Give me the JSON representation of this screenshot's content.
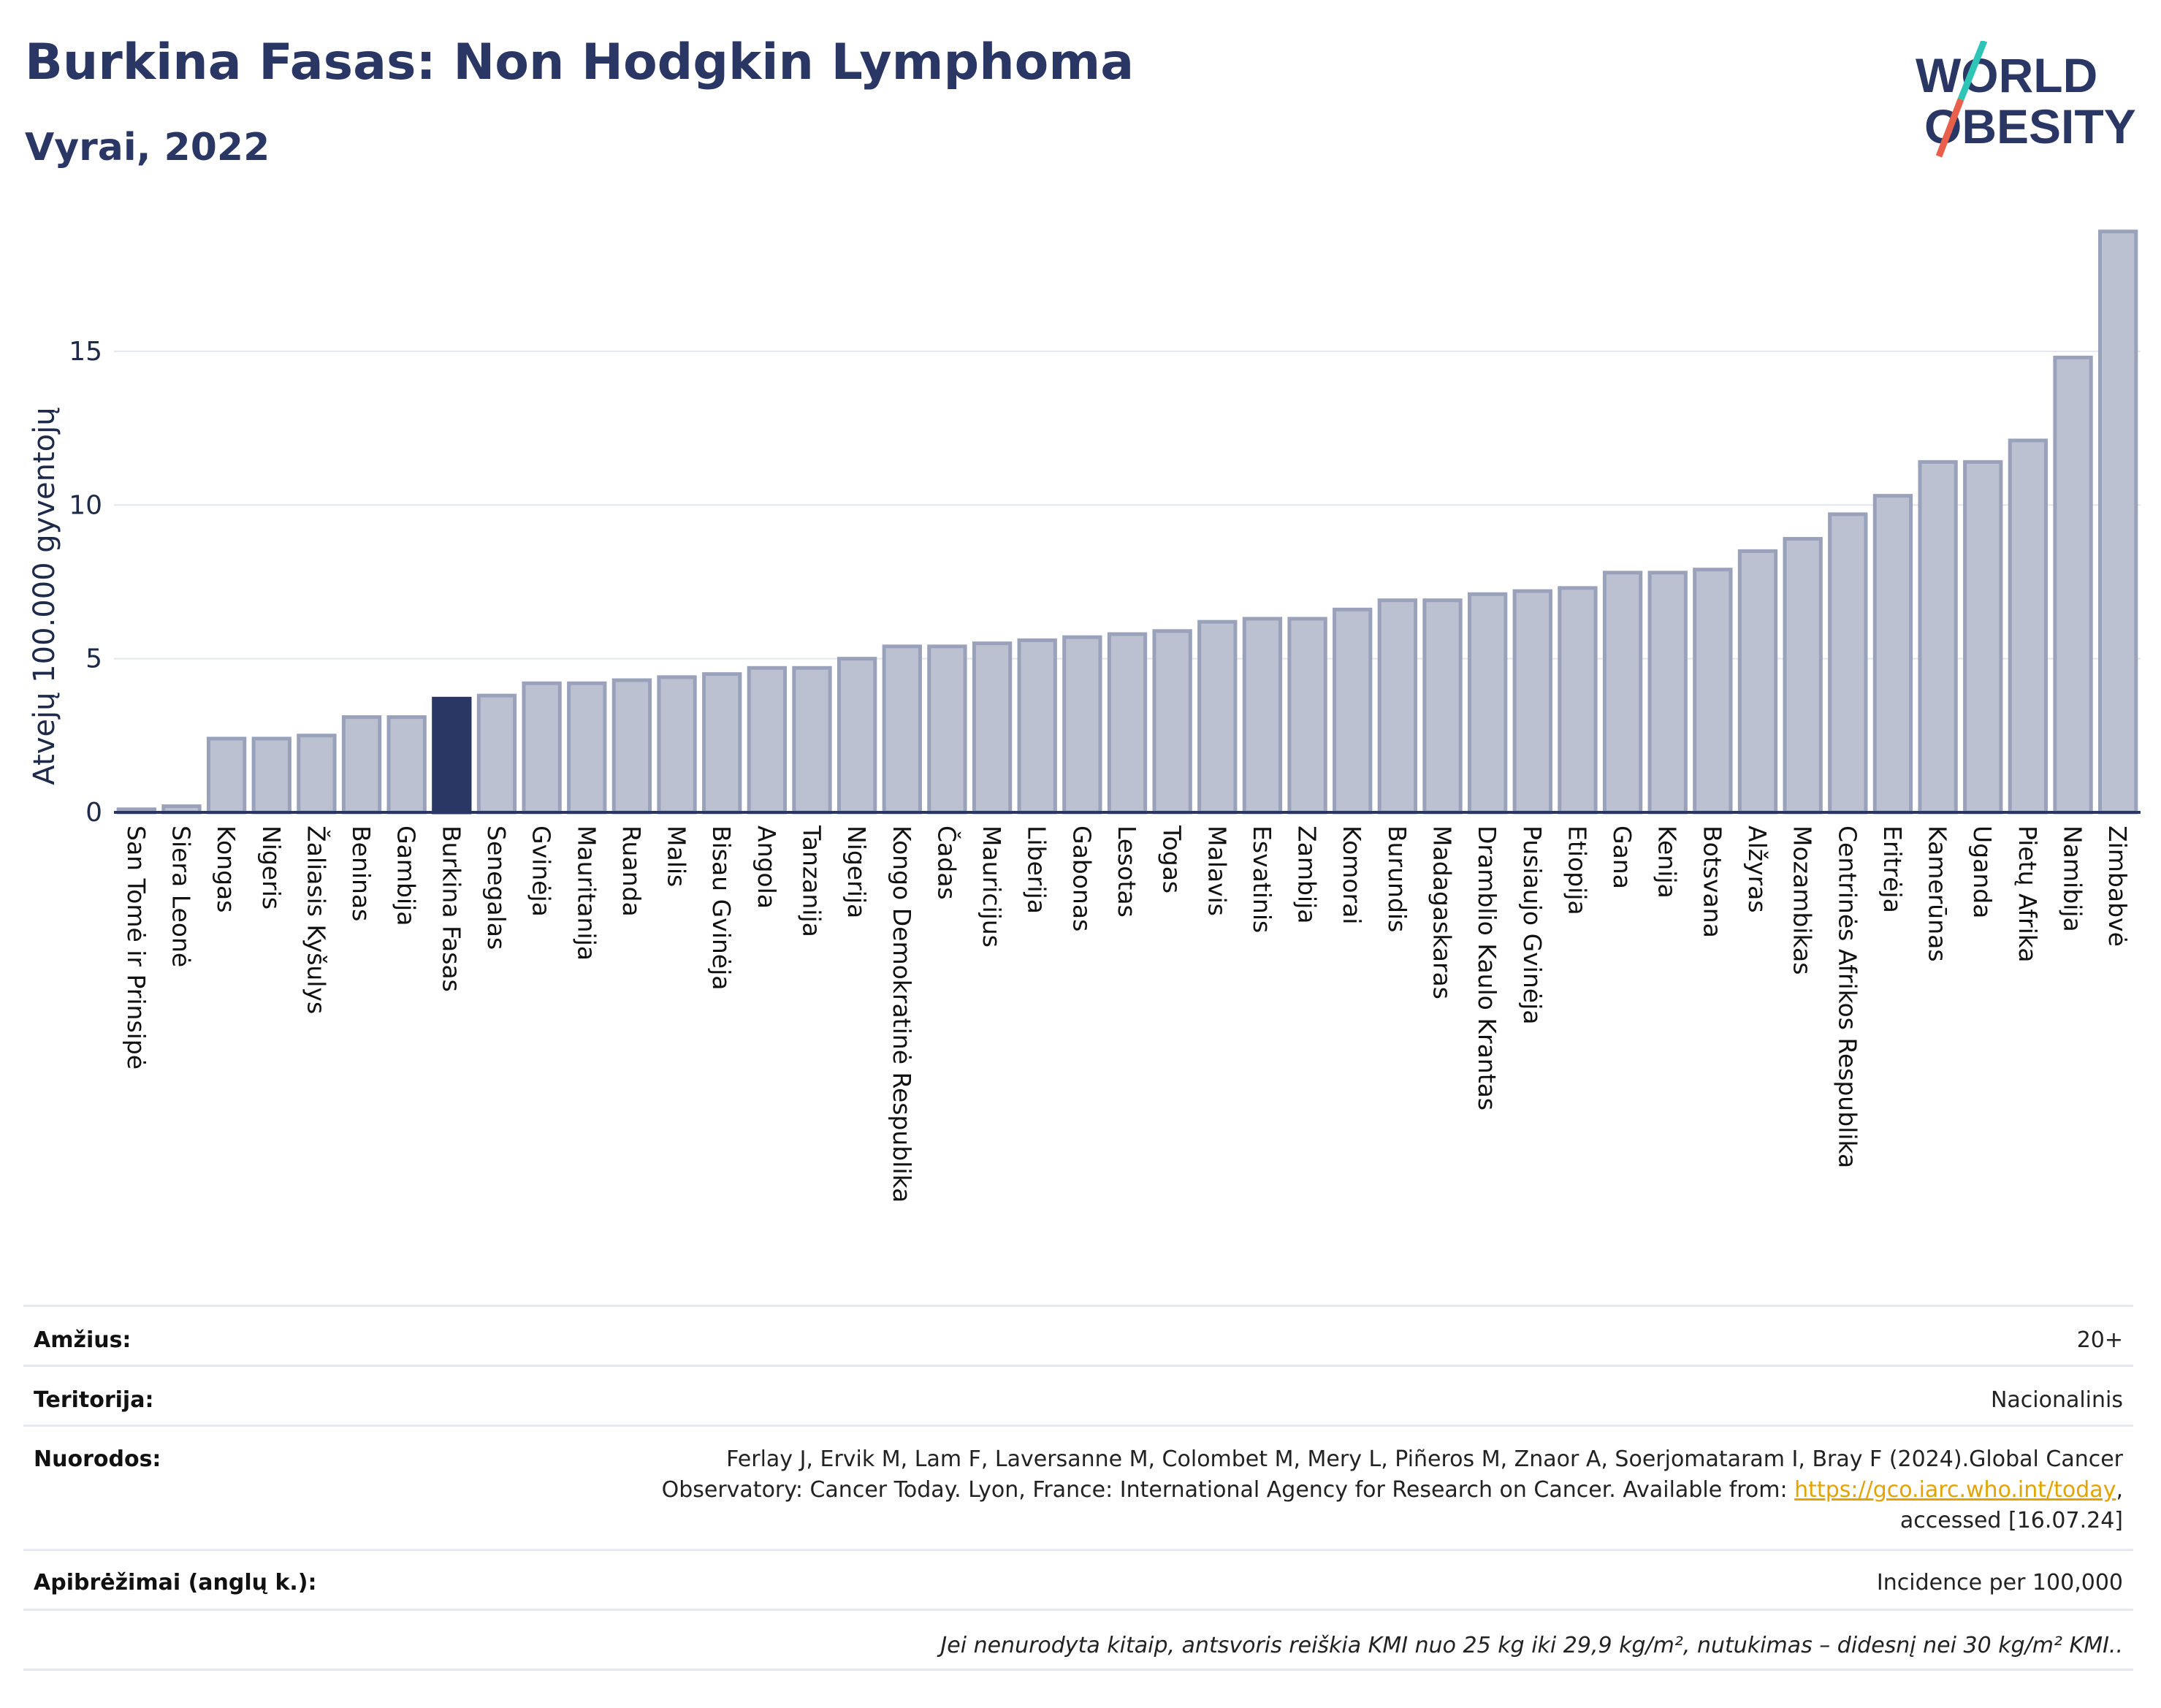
{
  "header": {
    "title": "Burkina Fasas: Non Hodgkin Lymphoma",
    "subtitle": "Vyrai, 2022",
    "logo_line1": "WORLD",
    "logo_line2": "OBESITY"
  },
  "colors": {
    "bar": "#bcc1d1",
    "bar_border": "#9aa1bb",
    "highlight": "#2a3764",
    "text": "#1e2a4a",
    "logo_teal": "#2ec4b6",
    "logo_red": "#e8604c"
  },
  "chart_data": {
    "type": "bar",
    "title": "Burkina Fasas: Non Hodgkin Lymphoma",
    "subtitle": "Vyrai, 2022",
    "xlabel": "",
    "ylabel": "Atvejų 100.000 gyventojų",
    "ylim": [
      0,
      19.3
    ],
    "yticks": [
      0,
      5,
      10,
      15
    ],
    "grid": true,
    "highlight": "Burkina Fasas",
    "categories": [
      "San Tomė ir Prinsipė",
      "Siera Leonė",
      "Kongas",
      "Nigeris",
      "Žaliasis Kyšulys",
      "Beninas",
      "Gambija",
      "Burkina Fasas",
      "Senegalas",
      "Gvinėja",
      "Mauritanija",
      "Ruanda",
      "Malis",
      "Bisau Gvinėja",
      "Angola",
      "Tanzanija",
      "Nigerija",
      "Kongo Demokratinė Respublika",
      "Čadas",
      "Mauricijus",
      "Liberija",
      "Gabonas",
      "Lesotas",
      "Togas",
      "Malavis",
      "Esvatinis",
      "Zambija",
      "Komorai",
      "Burundis",
      "Madagaskaras",
      "Dramblio Kaulo Krantas",
      "Pusiaujo Gvinėja",
      "Etiopija",
      "Gana",
      "Kenija",
      "Botsvana",
      "Alžyras",
      "Mozambikas",
      "Centrinės Afrikos Respublika",
      "Eritrėja",
      "Kamerūnas",
      "Uganda",
      "Pietų Afrika",
      "Namibija",
      "Zimbabvė"
    ],
    "values": [
      0.1,
      0.2,
      2.4,
      2.4,
      2.5,
      3.1,
      3.1,
      3.7,
      3.8,
      4.2,
      4.2,
      4.3,
      4.4,
      4.5,
      4.7,
      4.7,
      5.0,
      5.4,
      5.4,
      5.5,
      5.6,
      5.7,
      5.8,
      5.9,
      6.2,
      6.3,
      6.3,
      6.6,
      6.9,
      6.9,
      7.1,
      7.2,
      7.3,
      7.8,
      7.8,
      7.9,
      8.5,
      8.9,
      9.7,
      10.3,
      11.4,
      11.4,
      12.1,
      14.8,
      18.9
    ]
  },
  "info": {
    "age_label": "Amžius:",
    "age_value": "20+",
    "territory_label": "Teritorija:",
    "territory_value": "Nacionalinis",
    "refs_label": "Nuorodos:",
    "refs_line1": "Ferlay J, Ervik M, Lam F, Laversanne M, Colombet M, Mery L, Piñeros M, Znaor A, Soerjomataram I, Bray F (2024).Global Cancer",
    "refs_line2_prefix": "Observatory: Cancer Today. Lyon, France: International Agency for Research on Cancer. Available from: ",
    "refs_link": "https://gco.iarc.who.int/today",
    "refs_line2_suffix": ",",
    "refs_line3": "accessed [16.07.24]",
    "def_label": "Apibrėžimai (anglų k.):",
    "def_value": "Incidence per 100,000",
    "note": "Jei nenurodyta kitaip, antsvoris reiškia KMI nuo 25 kg iki 29,9 kg/m², nutukimas – didesnį nei 30 kg/m² KMI.."
  }
}
